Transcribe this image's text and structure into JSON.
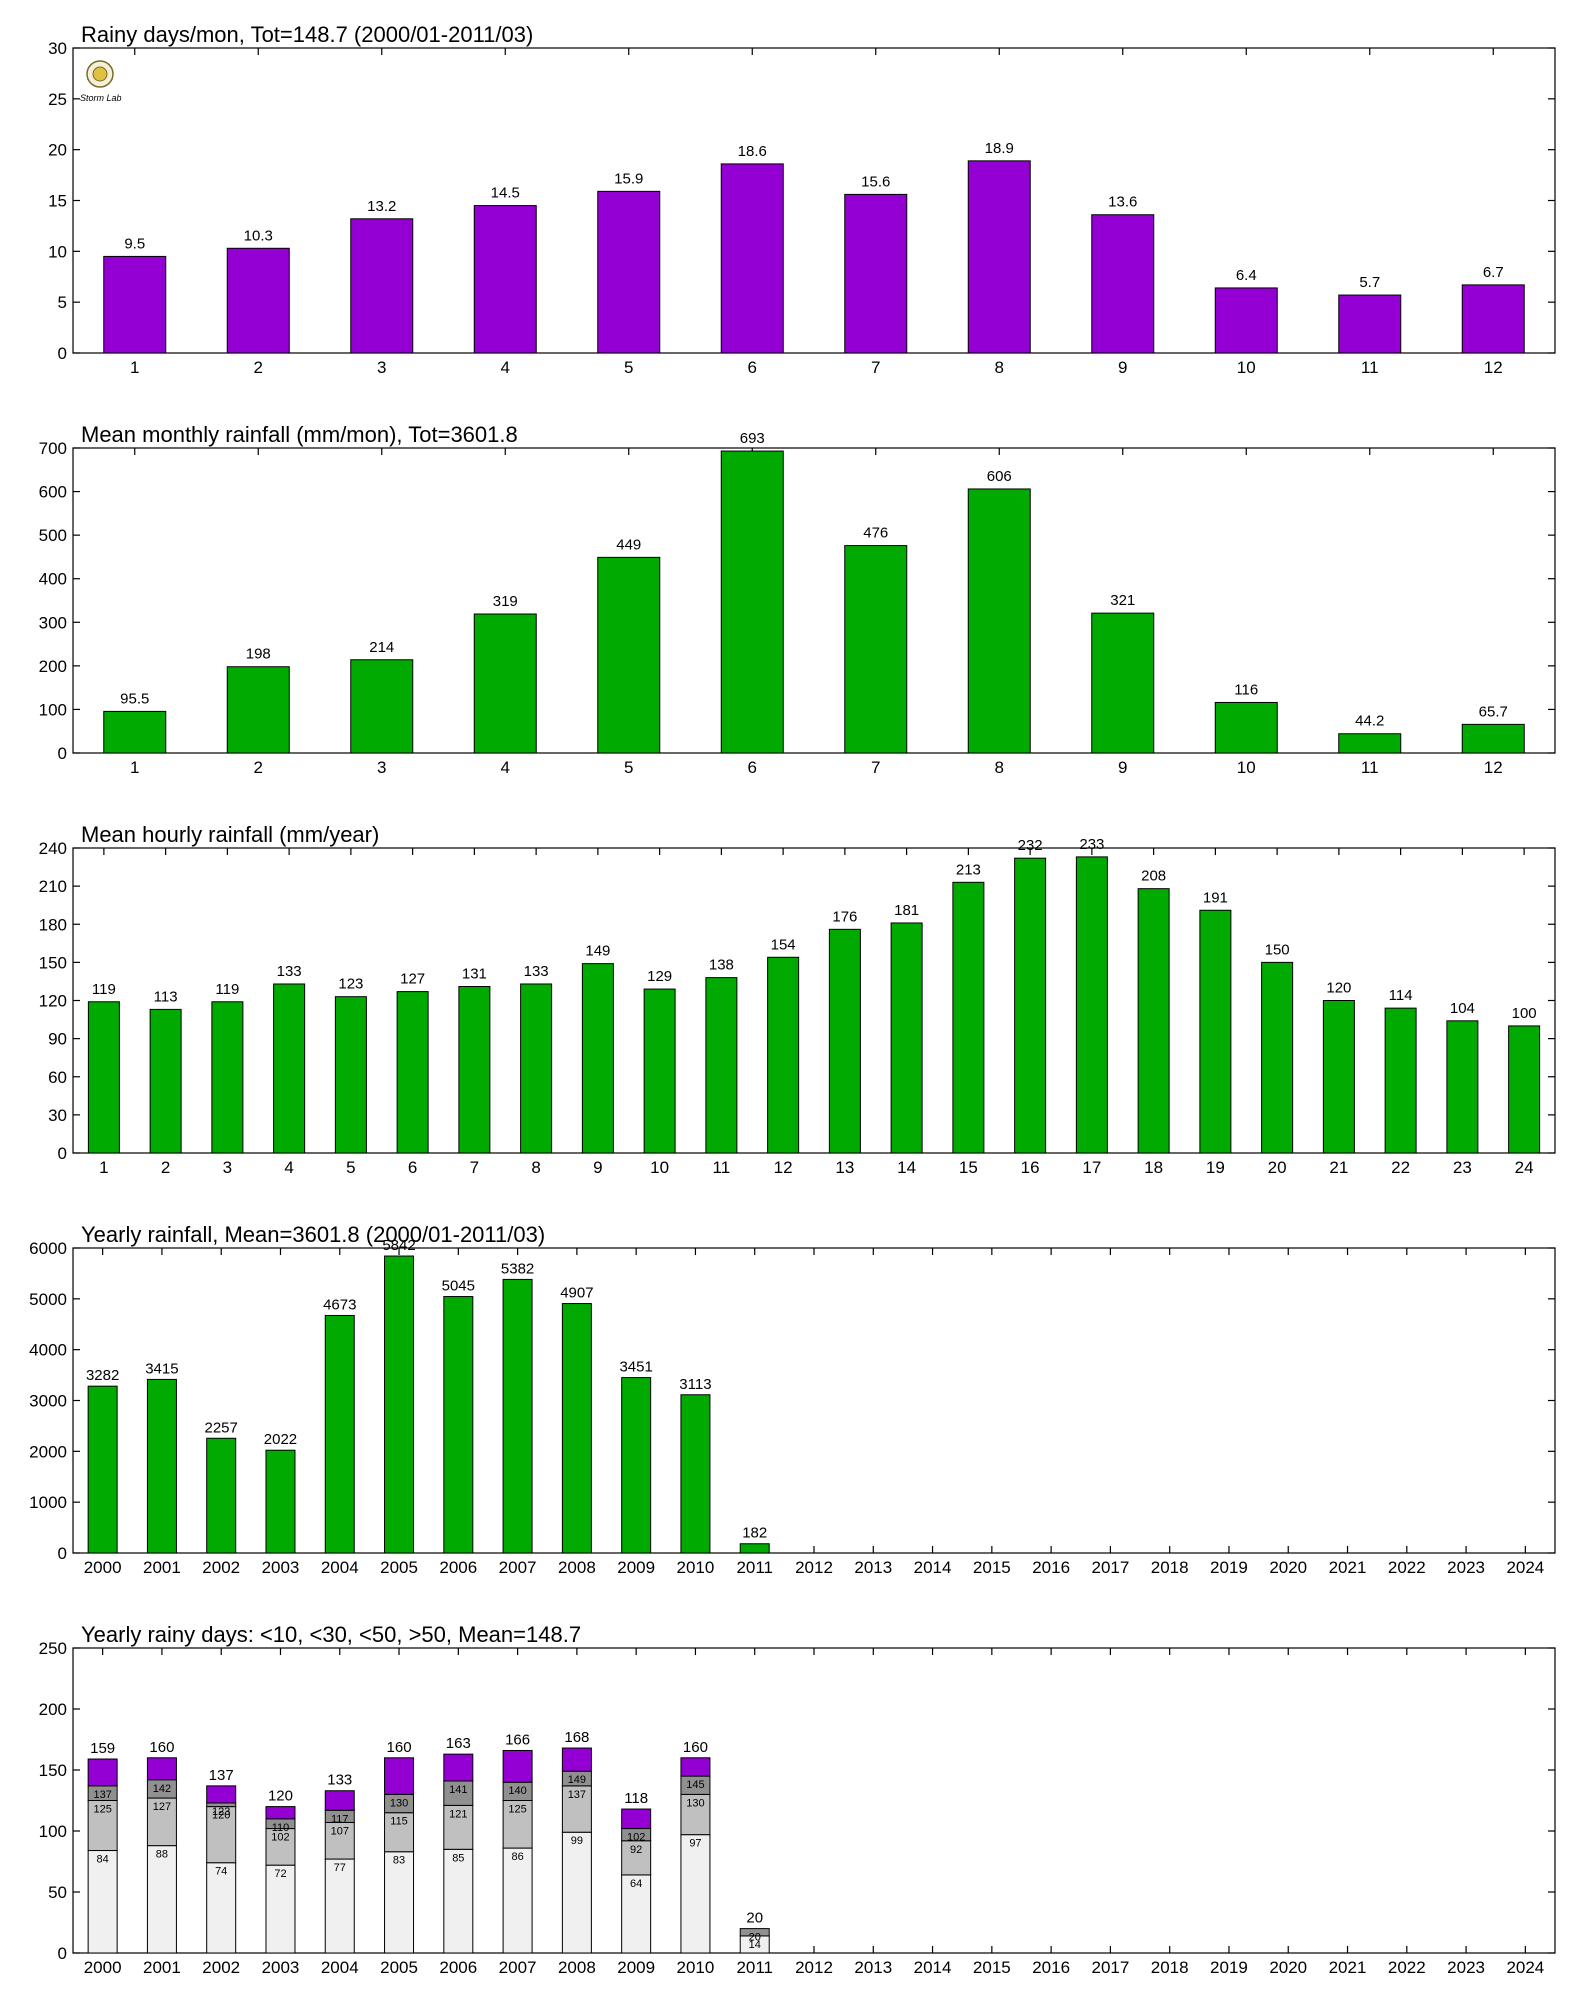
{
  "colors": {
    "purple": "#9400D3",
    "green": "#00AA00",
    "lt10": "#F0F0F0",
    "lt30": "#C0C0C0",
    "lt50": "#909090",
    "gt50": "#9400D3"
  },
  "logo": {
    "icon": "stormlab-logo-icon",
    "text": "Storm Lab"
  },
  "chart_data": [
    {
      "type": "bar",
      "title": "Rainy days/mon, Tot=148.7 (2000/01-2011/03)",
      "categories": [
        "1",
        "2",
        "3",
        "4",
        "5",
        "6",
        "7",
        "8",
        "9",
        "10",
        "11",
        "12"
      ],
      "values": [
        9.5,
        10.3,
        13.2,
        14.5,
        15.9,
        18.6,
        15.6,
        18.9,
        13.6,
        6.4,
        5.7,
        6.7
      ],
      "labels": [
        "9.5",
        "10.3",
        "13.2",
        "14.5",
        "15.9",
        "18.6",
        "15.6",
        "18.9",
        "13.6",
        "6.4",
        "5.7",
        "6.7"
      ],
      "ylim": [
        0,
        30
      ],
      "yticks": [
        "0",
        "5",
        "10",
        "15",
        "20",
        "25",
        "30"
      ],
      "color": "#9400D3"
    },
    {
      "type": "bar",
      "title": "Mean monthly rainfall (mm/mon), Tot=3601.8",
      "categories": [
        "1",
        "2",
        "3",
        "4",
        "5",
        "6",
        "7",
        "8",
        "9",
        "10",
        "11",
        "12"
      ],
      "values": [
        95.5,
        198,
        214,
        319,
        449,
        693,
        476,
        606,
        321,
        116,
        44.2,
        65.7
      ],
      "labels": [
        "95.5",
        "198",
        "214",
        "319",
        "449",
        "693",
        "476",
        "606",
        "321",
        "116",
        "44.2",
        "65.7"
      ],
      "ylim": [
        0,
        700
      ],
      "yticks": [
        "0",
        "100",
        "200",
        "300",
        "400",
        "500",
        "600",
        "700"
      ],
      "color": "#00AA00"
    },
    {
      "type": "bar",
      "title": "Mean hourly rainfall (mm/year)",
      "categories": [
        "1",
        "2",
        "3",
        "4",
        "5",
        "6",
        "7",
        "8",
        "9",
        "10",
        "11",
        "12",
        "13",
        "14",
        "15",
        "16",
        "17",
        "18",
        "19",
        "20",
        "21",
        "22",
        "23",
        "24"
      ],
      "values": [
        119,
        113,
        119,
        133,
        123,
        127,
        131,
        133,
        149,
        129,
        138,
        154,
        176,
        181,
        213,
        232,
        233,
        208,
        191,
        150,
        120,
        114,
        104,
        100
      ],
      "labels": [
        "119",
        "113",
        "119",
        "133",
        "123",
        "127",
        "131",
        "133",
        "149",
        "129",
        "138",
        "154",
        "176",
        "181",
        "213",
        "232",
        "233",
        "208",
        "191",
        "150",
        "120",
        "114",
        "104",
        "100"
      ],
      "ylim": [
        0,
        240
      ],
      "yticks": [
        "0",
        "30",
        "60",
        "90",
        "120",
        "150",
        "180",
        "210",
        "240"
      ],
      "color": "#00AA00"
    },
    {
      "type": "bar",
      "title": "Yearly rainfall, Mean=3601.8  (2000/01-2011/03)",
      "categories": [
        "2000",
        "2001",
        "2002",
        "2003",
        "2004",
        "2005",
        "2006",
        "2007",
        "2008",
        "2009",
        "2010",
        "2011",
        "2012",
        "2013",
        "2014",
        "2015",
        "2016",
        "2017",
        "2018",
        "2019",
        "2020",
        "2021",
        "2022",
        "2023",
        "2024"
      ],
      "values": [
        3282,
        3415,
        2257,
        2022,
        4673,
        5842,
        5045,
        5382,
        4907,
        3451,
        3113,
        182,
        null,
        null,
        null,
        null,
        null,
        null,
        null,
        null,
        null,
        null,
        null,
        null,
        null
      ],
      "labels": [
        "3282",
        "3415",
        "2257",
        "2022",
        "4673",
        "5842",
        "5045",
        "5382",
        "4907",
        "3451",
        "3113",
        "182",
        "",
        "",
        "",
        "",
        "",
        "",
        "",
        "",
        "",
        "",
        "",
        "",
        ""
      ],
      "ylim": [
        0,
        6000
      ],
      "yticks": [
        "0",
        "1000",
        "2000",
        "3000",
        "4000",
        "5000",
        "6000"
      ],
      "color": "#00AA00"
    },
    {
      "type": "bar",
      "stacked": true,
      "title": "Yearly rainy days: <10, <30, <50, >50, Mean=148.7",
      "categories": [
        "2000",
        "2001",
        "2002",
        "2003",
        "2004",
        "2005",
        "2006",
        "2007",
        "2008",
        "2009",
        "2010",
        "2011",
        "2012",
        "2013",
        "2014",
        "2015",
        "2016",
        "2017",
        "2018",
        "2019",
        "2020",
        "2021",
        "2022",
        "2023",
        "2024"
      ],
      "cumulative": {
        "lt10": [
          84,
          88,
          74,
          72,
          77,
          83,
          85,
          86,
          99,
          64,
          97,
          14
        ],
        "lt30": [
          125,
          127,
          120,
          102,
          107,
          115,
          121,
          125,
          137,
          92,
          130,
          null
        ],
        "lt50": [
          137,
          142,
          123,
          110,
          117,
          130,
          141,
          140,
          149,
          102,
          145,
          20
        ],
        "total": [
          159,
          160,
          137,
          120,
          133,
          160,
          163,
          166,
          168,
          118,
          160,
          20
        ]
      },
      "seg_labels": {
        "lt10": [
          "84",
          "88",
          "74",
          "72",
          "77",
          "83",
          "85",
          "86",
          "99",
          "64",
          "97",
          "14"
        ],
        "lt30": [
          "125",
          "127",
          "120",
          "102",
          "107",
          "115",
          "121",
          "125",
          "137",
          "92",
          "130",
          ""
        ],
        "lt50": [
          "137",
          "142",
          "123",
          "110",
          "117",
          "130",
          "141",
          "140",
          "149",
          "102",
          "145",
          "20"
        ],
        "total": [
          "159",
          "160",
          "137",
          "120",
          "133",
          "160",
          "163",
          "166",
          "168",
          "118",
          "160",
          "20"
        ]
      },
      "ylim": [
        0,
        250
      ],
      "yticks": [
        "0",
        "50",
        "100",
        "150",
        "200",
        "250"
      ]
    }
  ]
}
